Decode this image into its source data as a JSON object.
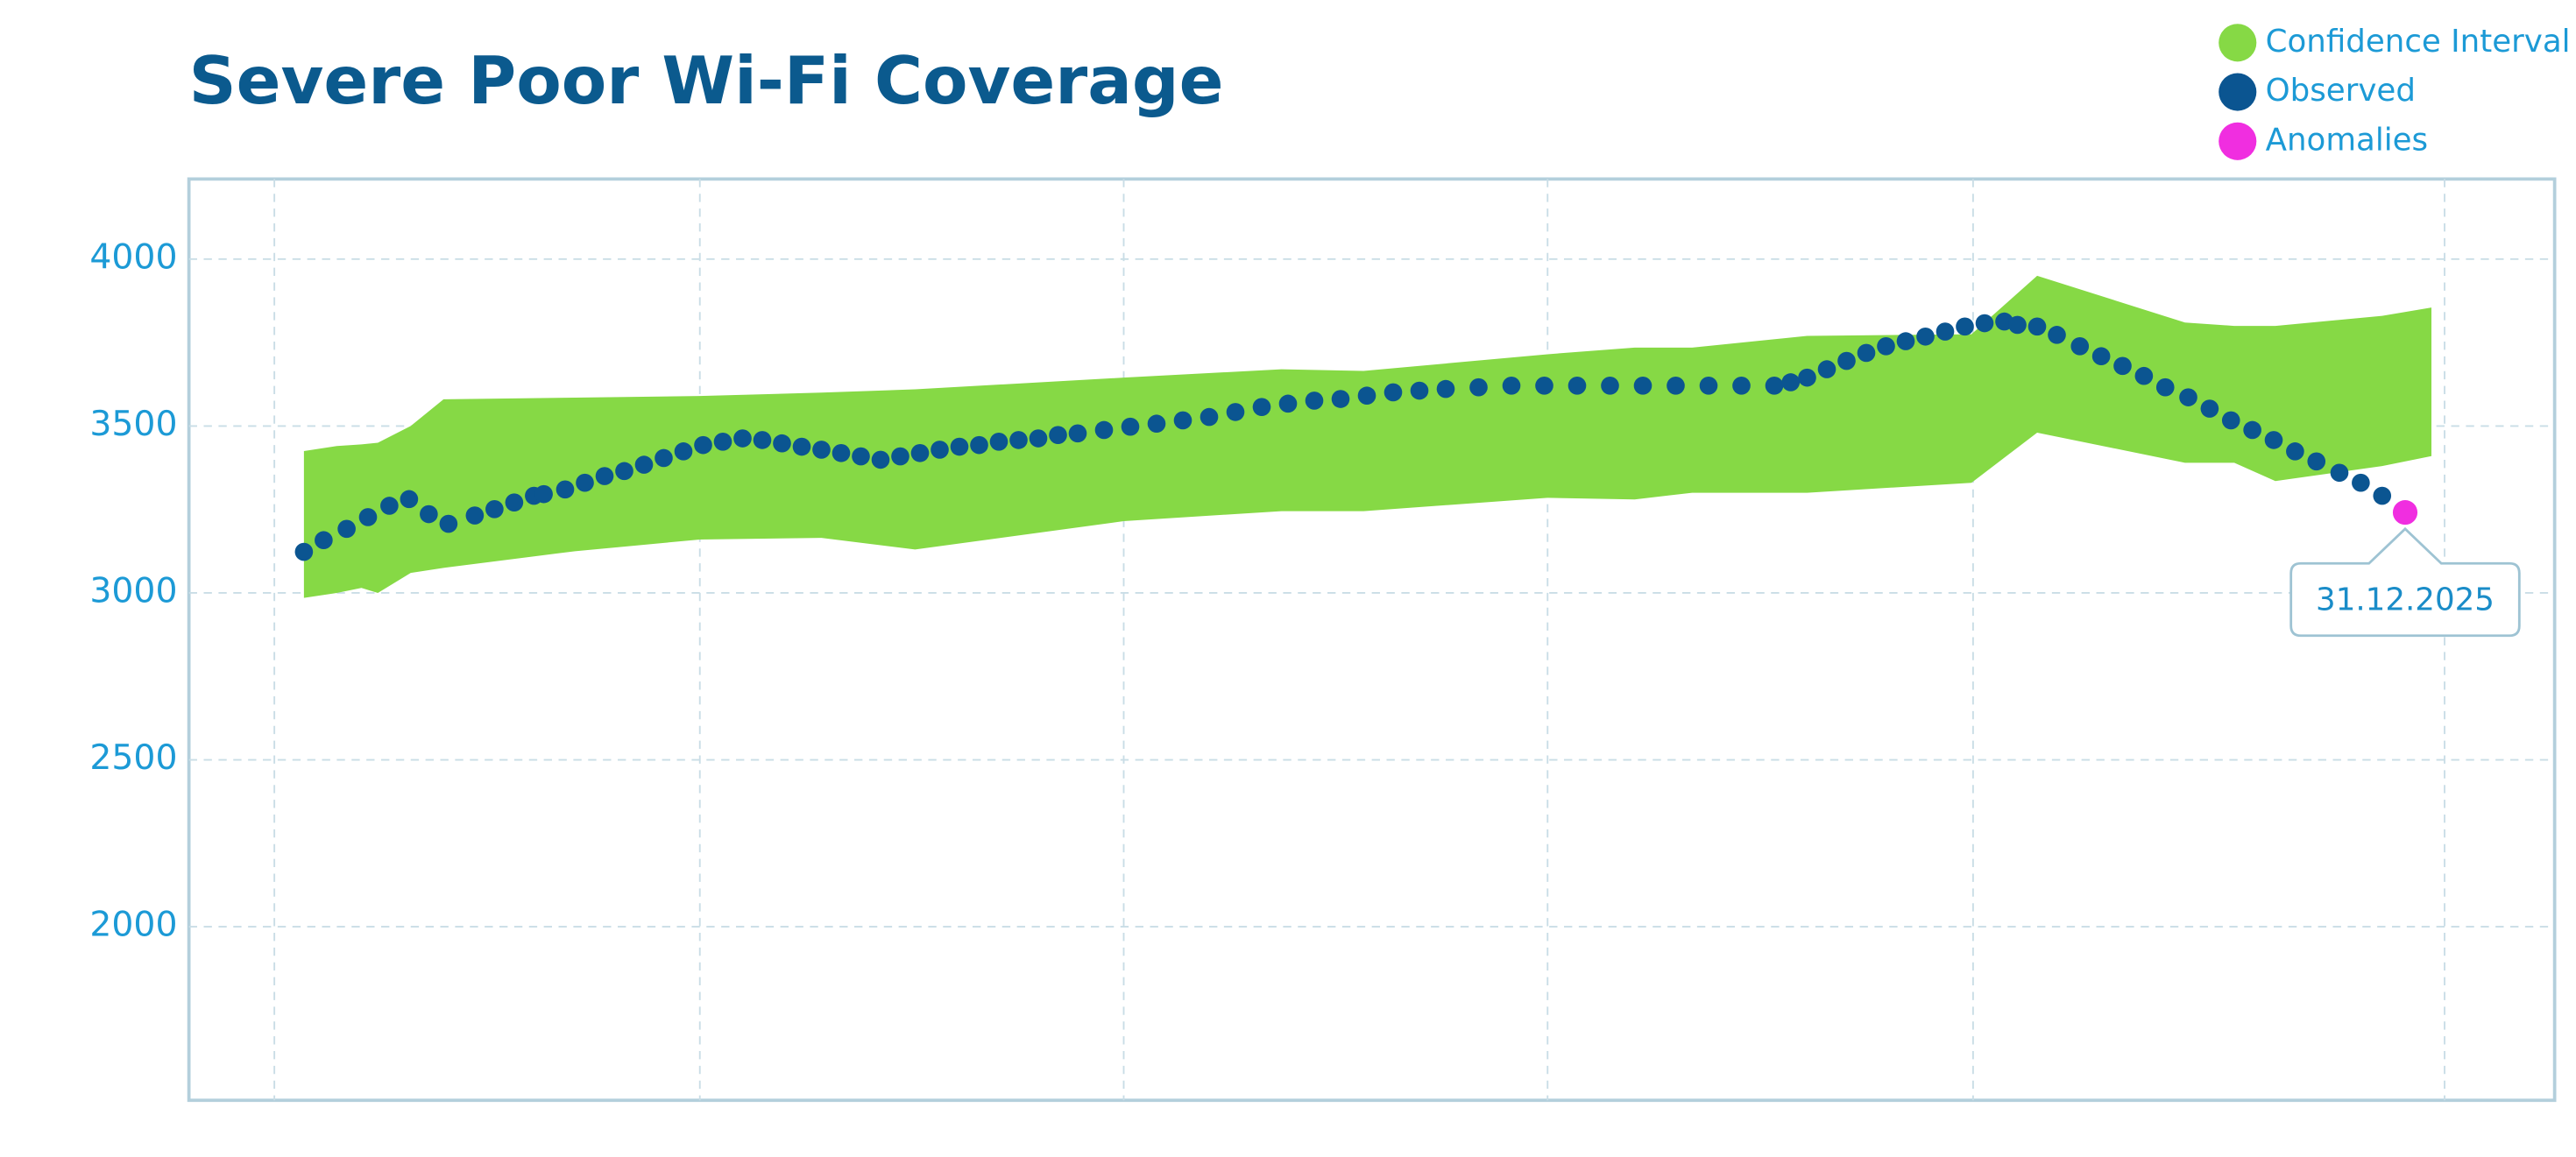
{
  "chart_data": {
    "type": "scatter",
    "title": "Severe Poor Wi-Fi Coverage",
    "xlim": [
      115,
      1555
    ],
    "xticks": [
      167,
      426,
      684,
      942,
      1201,
      1488
    ],
    "ylim": [
      1480,
      4240
    ],
    "yticks": [
      2000,
      2500,
      3000,
      3500,
      4000
    ],
    "grid": true,
    "legend": "top-right",
    "series": [
      {
        "name": "Confidence Interval",
        "color": "#86d945",
        "x": [
          185,
          205,
          220,
          230,
          250,
          270,
          350,
          426,
          500,
          557,
          684,
          780,
          830,
          942,
          995,
          1030,
          1100,
          1200,
          1240,
          1330,
          1360,
          1385,
          1450,
          1480
        ],
        "upper": [
          3425,
          3440,
          3445,
          3450,
          3500,
          3580,
          3585,
          3590,
          3600,
          3610,
          3645,
          3670,
          3665,
          3715,
          3735,
          3735,
          3770,
          3775,
          3950,
          3810,
          3800,
          3800,
          3830,
          3855
        ],
        "lower": [
          2985,
          3000,
          3015,
          3000,
          3060,
          3075,
          3125,
          3160,
          3165,
          3130,
          3215,
          3245,
          3245,
          3285,
          3280,
          3300,
          3300,
          3330,
          3480,
          3390,
          3390,
          3335,
          3380,
          3410
        ]
      },
      {
        "name": "Observed",
        "color": "#0b5591",
        "x": [
          185,
          197,
          211,
          224,
          237,
          249,
          261,
          273,
          289,
          301,
          313,
          325,
          331,
          344,
          356,
          368,
          380,
          392,
          404,
          416,
          428,
          440,
          452,
          464,
          476,
          488,
          500,
          512,
          524,
          536,
          548,
          560,
          572,
          584,
          596,
          608,
          620,
          632,
          644,
          656,
          672,
          688,
          704,
          720,
          736,
          752,
          768,
          784,
          800,
          816,
          832,
          848,
          864,
          880,
          900,
          920,
          940,
          960,
          980,
          1000,
          1020,
          1040,
          1060,
          1080,
          1090,
          1100,
          1112,
          1124,
          1136,
          1148,
          1160,
          1172,
          1184,
          1196,
          1208,
          1220,
          1228,
          1240,
          1252,
          1266,
          1279,
          1292,
          1305,
          1318,
          1332,
          1345,
          1358,
          1371,
          1384,
          1397,
          1410,
          1424,
          1437,
          1450
        ],
        "values": [
          3123,
          3158,
          3192,
          3227,
          3261,
          3281,
          3236,
          3207,
          3232,
          3251,
          3271,
          3291,
          3296,
          3310,
          3330,
          3350,
          3365,
          3384,
          3404,
          3424,
          3443,
          3453,
          3463,
          3458,
          3448,
          3438,
          3429,
          3419,
          3409,
          3399,
          3409,
          3419,
          3429,
          3438,
          3443,
          3453,
          3458,
          3463,
          3473,
          3478,
          3488,
          3498,
          3507,
          3517,
          3527,
          3542,
          3557,
          3567,
          3576,
          3581,
          3591,
          3601,
          3606,
          3611,
          3616,
          3621,
          3621,
          3621,
          3621,
          3621,
          3621,
          3621,
          3621,
          3621,
          3631,
          3645,
          3670,
          3695,
          3719,
          3739,
          3754,
          3768,
          3783,
          3798,
          3808,
          3813,
          3803,
          3798,
          3773,
          3739,
          3709,
          3680,
          3650,
          3616,
          3586,
          3552,
          3517,
          3488,
          3458,
          3424,
          3394,
          3360,
          3330,
          3291
        ]
      },
      {
        "name": "Anomalies",
        "color": "#f02ee0",
        "x": [
          1464
        ],
        "values": [
          3241
        ],
        "point_labels": [
          "31.12.2025"
        ]
      }
    ]
  }
}
